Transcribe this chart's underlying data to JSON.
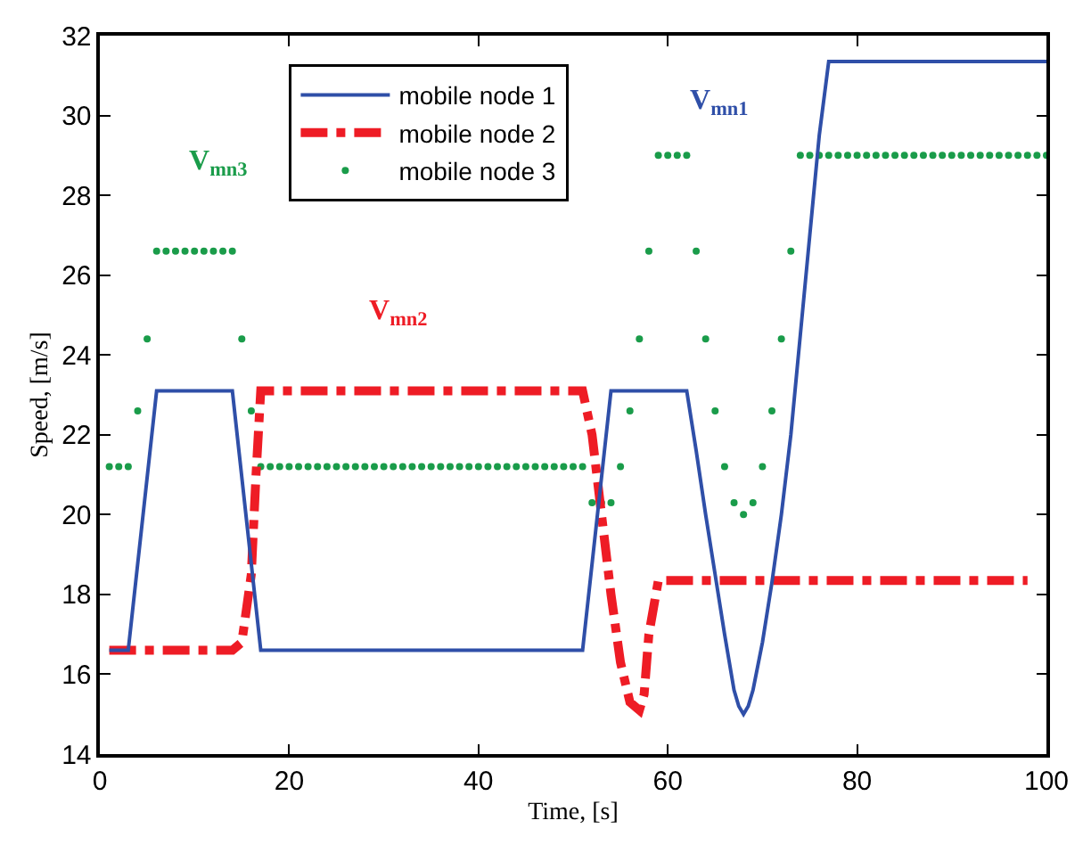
{
  "chart_data": {
    "type": "line",
    "xlabel": "Time, [s]",
    "ylabel": "Speed, [m/s]",
    "xlim": [
      0,
      100
    ],
    "xticks": [
      0,
      20,
      40,
      60,
      80,
      100
    ],
    "ylim": [
      14,
      32
    ],
    "yticks": [
      14,
      16,
      18,
      20,
      22,
      24,
      26,
      28,
      30,
      32
    ],
    "legend": "top",
    "series": [
      {
        "name": "mobile node 1",
        "color": "#2f4fa8",
        "line_style": "solid",
        "x": [
          1,
          3,
          6,
          14,
          17,
          51,
          54,
          62,
          63,
          64,
          65,
          66,
          67,
          67.5,
          68,
          68.5,
          69,
          70,
          71,
          72,
          73,
          74,
          75,
          76,
          77,
          100
        ],
        "values": [
          16.6,
          16.6,
          23.1,
          23.1,
          16.6,
          16.6,
          23.1,
          23.1,
          21.6,
          20,
          18.5,
          17,
          15.6,
          15.2,
          15,
          15.2,
          15.6,
          16.8,
          18.3,
          20,
          22,
          24.5,
          27,
          29.5,
          31.35,
          31.35
        ]
      },
      {
        "name": "mobile node 2",
        "color": "#ee1c25",
        "line_style": "dashed",
        "x": [
          1,
          14,
          15,
          16,
          16.5,
          17,
          51,
          52,
          53,
          54,
          55,
          56,
          57,
          57.5,
          58,
          59,
          98
        ],
        "values": [
          16.6,
          16.6,
          16.8,
          18.5,
          21,
          23.1,
          23.1,
          22,
          20,
          18,
          16.3,
          15.3,
          15.1,
          15.5,
          17,
          18.35,
          18.35
        ]
      },
      {
        "name": "mobile node 3",
        "color": "#1a9c4a",
        "type": "scatter",
        "marker": "circle",
        "x": [
          1,
          2,
          3,
          4,
          5,
          6,
          7,
          8,
          9,
          10,
          11,
          12,
          13,
          14,
          15,
          16,
          17,
          18,
          19,
          20,
          21,
          22,
          23,
          24,
          25,
          26,
          27,
          28,
          29,
          30,
          31,
          32,
          33,
          34,
          35,
          36,
          37,
          38,
          39,
          40,
          41,
          42,
          43,
          44,
          45,
          46,
          47,
          48,
          49,
          50,
          51,
          52,
          53,
          54,
          55,
          56,
          57,
          58,
          59,
          60,
          61,
          62,
          63,
          64,
          65,
          66,
          67,
          68,
          69,
          70,
          71,
          72,
          73,
          74,
          75,
          76,
          77,
          78,
          79,
          80,
          81,
          82,
          83,
          84,
          85,
          86,
          87,
          88,
          89,
          90,
          91,
          92,
          93,
          94,
          95,
          96,
          97,
          98,
          99,
          100
        ],
        "values": [
          21.2,
          21.2,
          21.2,
          22.6,
          24.4,
          26.6,
          26.6,
          26.6,
          26.6,
          26.6,
          26.6,
          26.6,
          26.6,
          26.6,
          24.4,
          22.6,
          21.2,
          21.2,
          21.2,
          21.2,
          21.2,
          21.2,
          21.2,
          21.2,
          21.2,
          21.2,
          21.2,
          21.2,
          21.2,
          21.2,
          21.2,
          21.2,
          21.2,
          21.2,
          21.2,
          21.2,
          21.2,
          21.2,
          21.2,
          21.2,
          21.2,
          21.2,
          21.2,
          21.2,
          21.2,
          21.2,
          21.2,
          21.2,
          21.2,
          21.2,
          21.2,
          20.3,
          20.3,
          20.3,
          21.2,
          22.6,
          24.4,
          26.6,
          29,
          29,
          29,
          29,
          26.6,
          24.4,
          22.6,
          21.2,
          20.3,
          20,
          20.3,
          21.2,
          22.6,
          24.4,
          26.6,
          29,
          29,
          29,
          29,
          29,
          29,
          29,
          29,
          29,
          29,
          29,
          29,
          29,
          29,
          29,
          29,
          29,
          29,
          29,
          29,
          29,
          29,
          29,
          29,
          29,
          29,
          29
        ]
      }
    ],
    "annotations": [
      "V$_{mn1}$",
      "V$_{mn2}$",
      "V$_{mn3}$"
    ]
  }
}
